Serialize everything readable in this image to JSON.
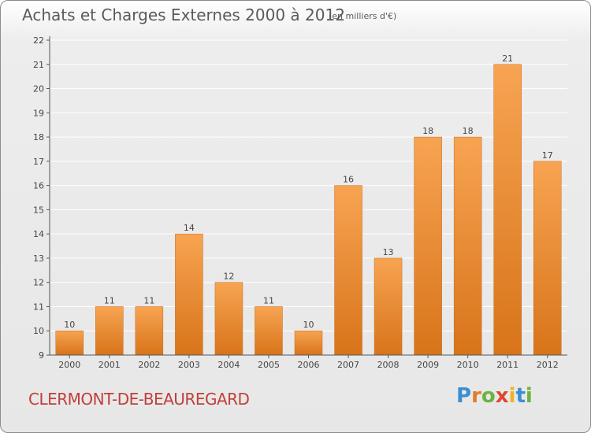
{
  "title": "Achats et Charges Externes 2000 à 2012",
  "subtitle": "(en milliers d'€)",
  "town": "CLERMONT-DE-BEAUREGARD",
  "brand": {
    "letters": [
      "P",
      "r",
      "o",
      "x",
      "i",
      "t",
      "i"
    ],
    "colors": [
      "#3b8fd1",
      "#e07b2a",
      "#6cb33f",
      "#e0452e",
      "#f0b323",
      "#3b8fd1",
      "#6cb33f"
    ]
  },
  "colors": {
    "bar_top": "#f7a452",
    "bar_bottom": "#d8741a",
    "bar_stroke": "#c9691a",
    "axis": "#555555",
    "grid": "#ffffff",
    "text": "#444444"
  },
  "chart_data": {
    "type": "bar",
    "title": "Achats et Charges Externes 2000 à 2012",
    "xlabel": "",
    "ylabel": "(en milliers d'€)",
    "categories": [
      "2000",
      "2001",
      "2002",
      "2003",
      "2004",
      "2005",
      "2006",
      "2007",
      "2008",
      "2009",
      "2010",
      "2011",
      "2012"
    ],
    "values": [
      10,
      11,
      11,
      14,
      12,
      11,
      10,
      16,
      13,
      18,
      18,
      21,
      17
    ],
    "ylim": [
      9,
      22
    ],
    "yticks": [
      9,
      10,
      11,
      12,
      13,
      14,
      15,
      16,
      17,
      18,
      19,
      20,
      21,
      22
    ],
    "grid": true
  }
}
